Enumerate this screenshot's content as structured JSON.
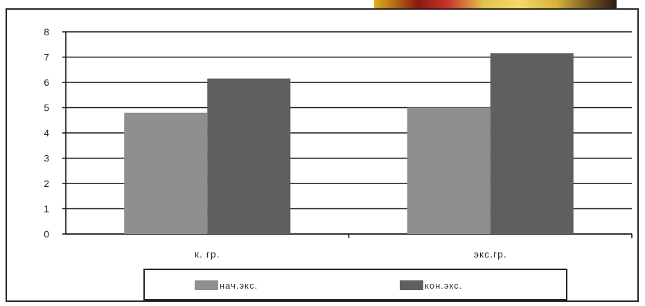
{
  "chart_data": {
    "type": "bar",
    "categories": [
      "к. гр.",
      "экс.гр."
    ],
    "series": [
      {
        "name": "нач.экс.",
        "values": [
          4.8,
          5.0
        ],
        "color": "#8f8f8f"
      },
      {
        "name": "кон.экс.",
        "values": [
          6.15,
          7.15
        ],
        "color": "#5f5f5f"
      }
    ],
    "ylim": [
      0,
      8
    ],
    "yticks": [
      "0",
      "1",
      "2",
      "3",
      "4",
      "5",
      "6",
      "7",
      "8"
    ],
    "grid": true,
    "legend_position": "bottom"
  }
}
